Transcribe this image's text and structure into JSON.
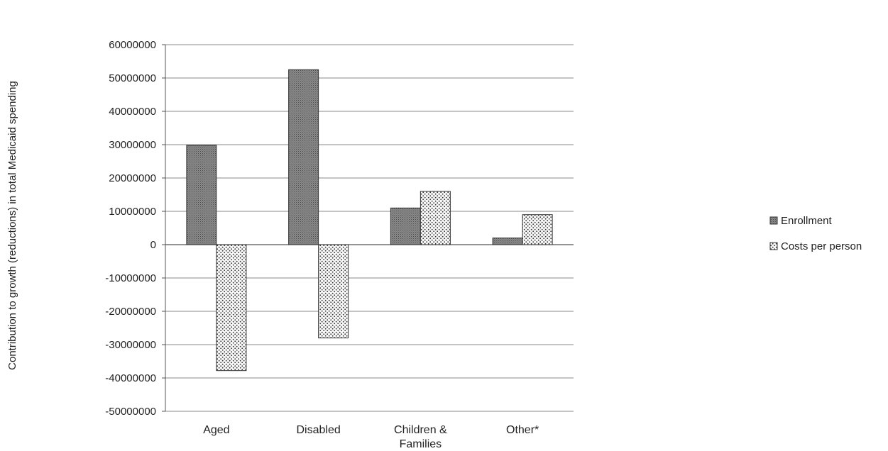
{
  "chart_data": {
    "type": "bar",
    "title": "",
    "xlabel": "",
    "ylabel": "Contribution to growth (reductions) in total Medicaid spending",
    "categories": [
      "Aged",
      "Disabled",
      "Children &\nFamilies",
      "Other*"
    ],
    "series": [
      {
        "name": "Enrollment",
        "values": [
          29800000,
          52500000,
          11000000,
          2000000
        ]
      },
      {
        "name": "Costs per person",
        "values": [
          -37800000,
          -28000000,
          16000000,
          9000000
        ]
      }
    ],
    "yticks": [
      60000000,
      50000000,
      40000000,
      30000000,
      20000000,
      10000000,
      0,
      -10000000,
      -20000000,
      -30000000,
      -40000000,
      -50000000
    ],
    "ylim": [
      -50000000,
      60000000
    ],
    "grid": true,
    "legend_position": "right"
  }
}
